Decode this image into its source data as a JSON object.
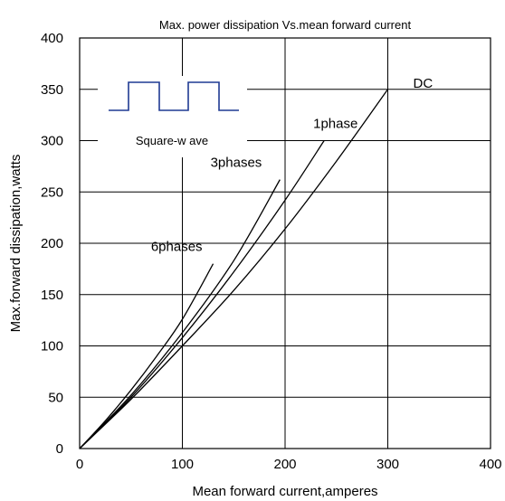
{
  "chart_data": {
    "type": "line",
    "title": "Max. power dissipation  Vs.mean forward current",
    "xlabel": "Mean forward  current,amperes",
    "ylabel": "Max.forward  dissipation,watts",
    "xlim": [
      0,
      400
    ],
    "ylim": [
      0,
      400
    ],
    "x_ticks": [
      "0",
      "100",
      "200",
      "300",
      "400"
    ],
    "y_ticks": [
      "0",
      "50",
      "100",
      "150",
      "200",
      "250",
      "300",
      "350",
      "400"
    ],
    "grid": true,
    "inset_label": "Square-w ave",
    "series": [
      {
        "name": "DC",
        "x": [
          0,
          50,
          100,
          150,
          200,
          250,
          300
        ],
        "y": [
          0,
          48,
          100,
          154,
          214,
          280,
          350
        ]
      },
      {
        "name": "1phase",
        "x": [
          0,
          50,
          100,
          150,
          200,
          238
        ],
        "y": [
          0,
          50,
          108,
          172,
          242,
          300
        ]
      },
      {
        "name": "3phases",
        "x": [
          0,
          50,
          100,
          150,
          195
        ],
        "y": [
          0,
          52,
          113,
          183,
          262
        ]
      },
      {
        "name": "6phases",
        "x": [
          0,
          25,
          50,
          75,
          100,
          130
        ],
        "y": [
          0,
          27,
          57,
          90,
          126,
          180
        ]
      }
    ]
  }
}
